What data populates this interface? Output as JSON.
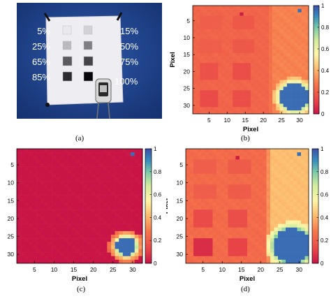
{
  "captions": {
    "a": "(a)",
    "b": "(b)",
    "c": "(c)",
    "d": "(d)"
  },
  "photo": {
    "percent_labels": [
      "5%",
      "15%",
      "25%",
      "50%",
      "65%",
      "75%",
      "85%",
      "100%"
    ],
    "patch_gray_levels": [
      0.05,
      0.15,
      0.25,
      0.5,
      0.65,
      0.75,
      0.85,
      1.0
    ],
    "colors": {
      "background": "#1f3f86",
      "board": "#f2f2f4",
      "label": "#ffffff"
    }
  },
  "chart_data": [
    {
      "id": "b",
      "type": "heatmap",
      "xlabel": "Pixel",
      "ylabel": "Pixel",
      "xticks": [
        5,
        10,
        15,
        20,
        25,
        30
      ],
      "yticks": [
        5,
        10,
        15,
        20,
        25,
        30
      ],
      "xlim": [
        0.5,
        32.5
      ],
      "ylim": [
        0.5,
        32.5
      ],
      "colorbar": {
        "ticks": [
          0,
          0.2,
          0.4,
          0.6,
          0.8,
          1
        ],
        "range": [
          0,
          1
        ],
        "colormap": "spectral-like"
      },
      "field": {
        "base": 0.22,
        "base_right": 0.3,
        "right_start_col": 23,
        "squares": [
          {
            "c0": 3,
            "c1": 8,
            "r0": 4,
            "r1": 7,
            "value": 0.2
          },
          {
            "c0": 12,
            "c1": 17,
            "r0": 4,
            "r1": 7,
            "value": 0.18
          },
          {
            "c0": 3,
            "c1": 8,
            "r0": 11,
            "r1": 14,
            "value": 0.2
          },
          {
            "c0": 12,
            "c1": 17,
            "r0": 11,
            "r1": 14,
            "value": 0.18
          },
          {
            "c0": 3,
            "c1": 7,
            "r0": 18,
            "r1": 22,
            "value": 0.16
          },
          {
            "c0": 12,
            "c1": 16,
            "r0": 18,
            "r1": 22,
            "value": 0.15
          },
          {
            "c0": 3,
            "c1": 7,
            "r0": 26,
            "r1": 30,
            "value": 0.14
          },
          {
            "c0": 12,
            "c1": 16,
            "r0": 26,
            "r1": 30,
            "value": 0.15
          }
        ],
        "blob": {
          "cx": 28.6,
          "cy": 27.6,
          "r": 4.6,
          "value": 0.95
        },
        "blob_rim": 0.5,
        "specks": [
          {
            "c": 14,
            "r": 3,
            "value": 0.02
          },
          {
            "c": 30,
            "r": 2,
            "value": 0.95
          }
        ]
      }
    },
    {
      "id": "c",
      "type": "heatmap",
      "xlabel": "Pixel",
      "ylabel": "Pixel",
      "xticks": [
        5,
        10,
        15,
        20,
        25,
        30
      ],
      "yticks": [
        5,
        10,
        15,
        20,
        25,
        30
      ],
      "xlim": [
        0.5,
        32.5
      ],
      "ylim": [
        0.5,
        32.5
      ],
      "colorbar": {
        "ticks": [
          0,
          0.2,
          0.4,
          0.6,
          0.8,
          1
        ],
        "range": [
          0,
          1
        ],
        "colormap": "spectral-like"
      },
      "field": {
        "base": 0.0,
        "base_right": 0.0,
        "right_start_col": 33,
        "squares": [],
        "blob": {
          "cx": 28.4,
          "cy": 27.8,
          "r": 3.2,
          "value": 0.95
        },
        "blob_rim": 0.45,
        "specks": [
          {
            "c": 30,
            "r": 2,
            "value": 0.95
          }
        ]
      }
    },
    {
      "id": "d",
      "type": "heatmap",
      "xlabel": "Pixel",
      "ylabel": "Pixel",
      "xticks": [
        5,
        10,
        15,
        20,
        25,
        30
      ],
      "yticks": [
        5,
        10,
        15,
        20,
        25,
        30
      ],
      "xlim": [
        0.5,
        32.5
      ],
      "ylim": [
        0.5,
        32.5
      ],
      "colorbar": {
        "ticks": [
          0,
          0.2,
          0.4,
          0.6,
          0.8,
          1
        ],
        "range": [
          0,
          1
        ],
        "colormap": "spectral-like"
      },
      "field": {
        "base": 0.24,
        "base_right": 0.42,
        "right_start_col": 23,
        "squares": [
          {
            "c0": 3,
            "c1": 8,
            "r0": 4,
            "r1": 7,
            "value": 0.2
          },
          {
            "c0": 12,
            "c1": 17,
            "r0": 4,
            "r1": 7,
            "value": 0.19
          },
          {
            "c0": 3,
            "c1": 8,
            "r0": 11,
            "r1": 14,
            "value": 0.2
          },
          {
            "c0": 12,
            "c1": 17,
            "r0": 11,
            "r1": 14,
            "value": 0.19
          },
          {
            "c0": 3,
            "c1": 7,
            "r0": 18,
            "r1": 22,
            "value": 0.14
          },
          {
            "c0": 12,
            "c1": 16,
            "r0": 18,
            "r1": 22,
            "value": 0.15
          },
          {
            "c0": 3,
            "c1": 7,
            "r0": 26,
            "r1": 30,
            "value": 0.06
          },
          {
            "c0": 12,
            "c1": 16,
            "r0": 26,
            "r1": 30,
            "value": 0.12
          }
        ],
        "blob": {
          "cx": 28.2,
          "cy": 27.6,
          "r": 5.5,
          "value": 0.95
        },
        "blob_rim": 0.62,
        "specks": [
          {
            "c": 14,
            "r": 3,
            "value": 0.02
          },
          {
            "c": 30,
            "r": 2,
            "value": 0.95
          }
        ]
      }
    }
  ]
}
